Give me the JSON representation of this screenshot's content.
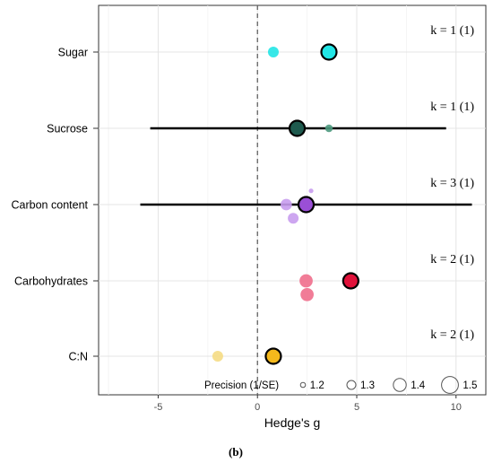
{
  "chart_data": {
    "type": "forest",
    "xlabel": "Hedge's g",
    "xlim": [
      -8,
      11.5
    ],
    "x_ticks": [
      -5,
      0,
      5,
      10
    ],
    "x_tick_labels": [
      "-5",
      "0",
      "5",
      "10"
    ],
    "reference_line_x": 0,
    "grid": true,
    "categories": [
      "Sugar",
      "Sucrose",
      "Carbon content",
      "Carbohydrates",
      "C:N"
    ],
    "k_labels": [
      "k = 1 (1)",
      "k = 1 (1)",
      "k = 3 (1)",
      "k = 2 (1)",
      "k = 2 (1)"
    ],
    "summary": [
      {
        "category": "Sugar",
        "estimate": 3.6,
        "ci": null,
        "color": "#22e6e6"
      },
      {
        "category": "Sucrose",
        "estimate": 2.0,
        "ci": [
          -5.4,
          9.5
        ],
        "color": "#1e5a4e"
      },
      {
        "category": "Carbon content",
        "estimate": 2.45,
        "ci": [
          -5.9,
          10.8
        ],
        "color": "#9a4fd6"
      },
      {
        "category": "Carbohydrates",
        "estimate": 4.7,
        "ci": null,
        "color": "#e0123a"
      },
      {
        "category": "C:N",
        "estimate": 0.8,
        "ci": null,
        "color": "#f5b91c"
      }
    ],
    "studies": [
      {
        "category": "Sugar",
        "x": 0.8,
        "offset": 0,
        "precision": 1.3,
        "color": "#22e6e6"
      },
      {
        "category": "Sucrose",
        "x": 3.6,
        "offset": 0,
        "precision": 1.2,
        "color": "#4e9a80"
      },
      {
        "category": "Carbon content",
        "x": 1.45,
        "offset": 0,
        "precision": 1.32,
        "color": "#c89cee"
      },
      {
        "category": "Carbon content",
        "x": 1.8,
        "offset": 0.18,
        "precision": 1.3,
        "color": "#c89cee"
      },
      {
        "category": "Carbon content",
        "x": 2.7,
        "offset": -0.18,
        "precision": 1.1,
        "color": "#c89cee"
      },
      {
        "category": "Carbohydrates",
        "x": 2.45,
        "offset": 0,
        "precision": 1.38,
        "color": "#f06e8c"
      },
      {
        "category": "Carbohydrates",
        "x": 2.5,
        "offset": 0.18,
        "precision": 1.38,
        "color": "#f06e8c"
      },
      {
        "category": "C:N",
        "x": -2.0,
        "offset": 0,
        "precision": 1.3,
        "color": "#f5dc84"
      }
    ],
    "legend": {
      "title": "Precision (1/SE)",
      "values": [
        1.2,
        1.3,
        1.4,
        1.5
      ],
      "labels": [
        "1.2",
        "1.3",
        "1.4",
        "1.5"
      ],
      "position": "bottom-right"
    }
  },
  "caption": "(b)"
}
